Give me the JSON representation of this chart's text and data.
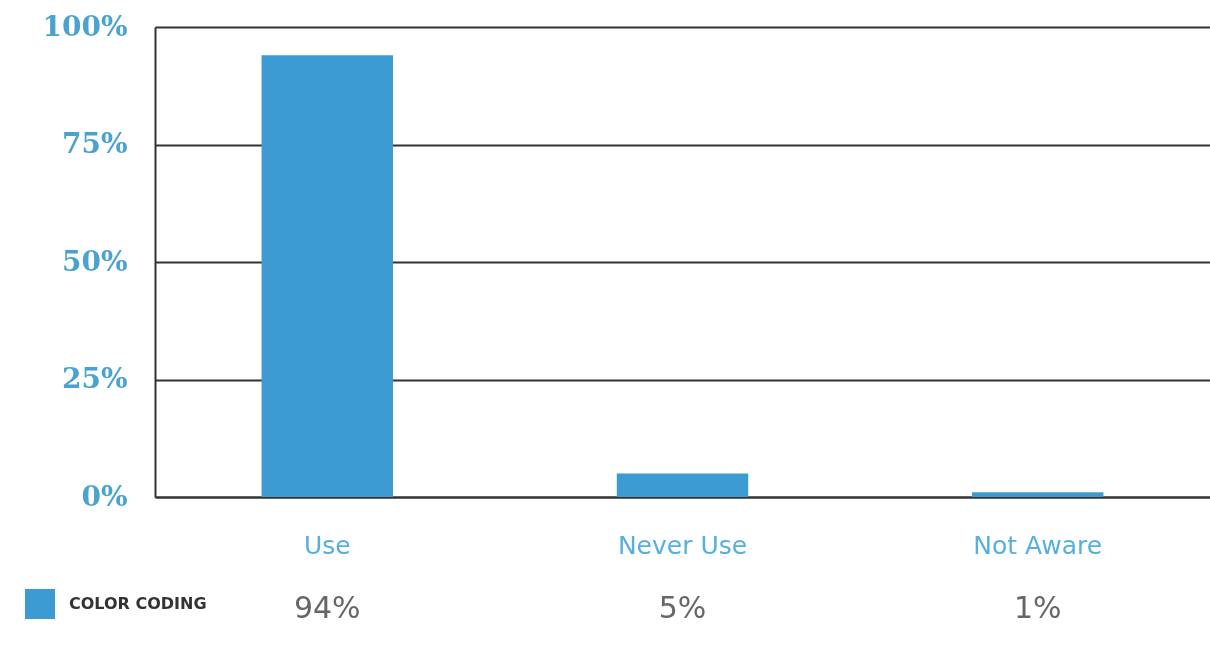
{
  "chart_data": {
    "type": "bar",
    "categories": [
      "Use",
      "Never Use",
      "Not Aware"
    ],
    "series": [
      {
        "name": "COLOR CODING",
        "color": "#3d9bd3",
        "values": [
          94,
          5,
          1
        ]
      }
    ],
    "value_labels": [
      "94%",
      "5%",
      "1%"
    ],
    "ylim": [
      0,
      100
    ],
    "yticks": [
      {
        "value": 0,
        "label": "0%"
      },
      {
        "value": 25,
        "label": "25%"
      },
      {
        "value": 50,
        "label": "50%"
      },
      {
        "value": 75,
        "label": "75%"
      },
      {
        "value": 100,
        "label": "100%"
      }
    ],
    "grid": "y",
    "legend": "bottom left"
  }
}
